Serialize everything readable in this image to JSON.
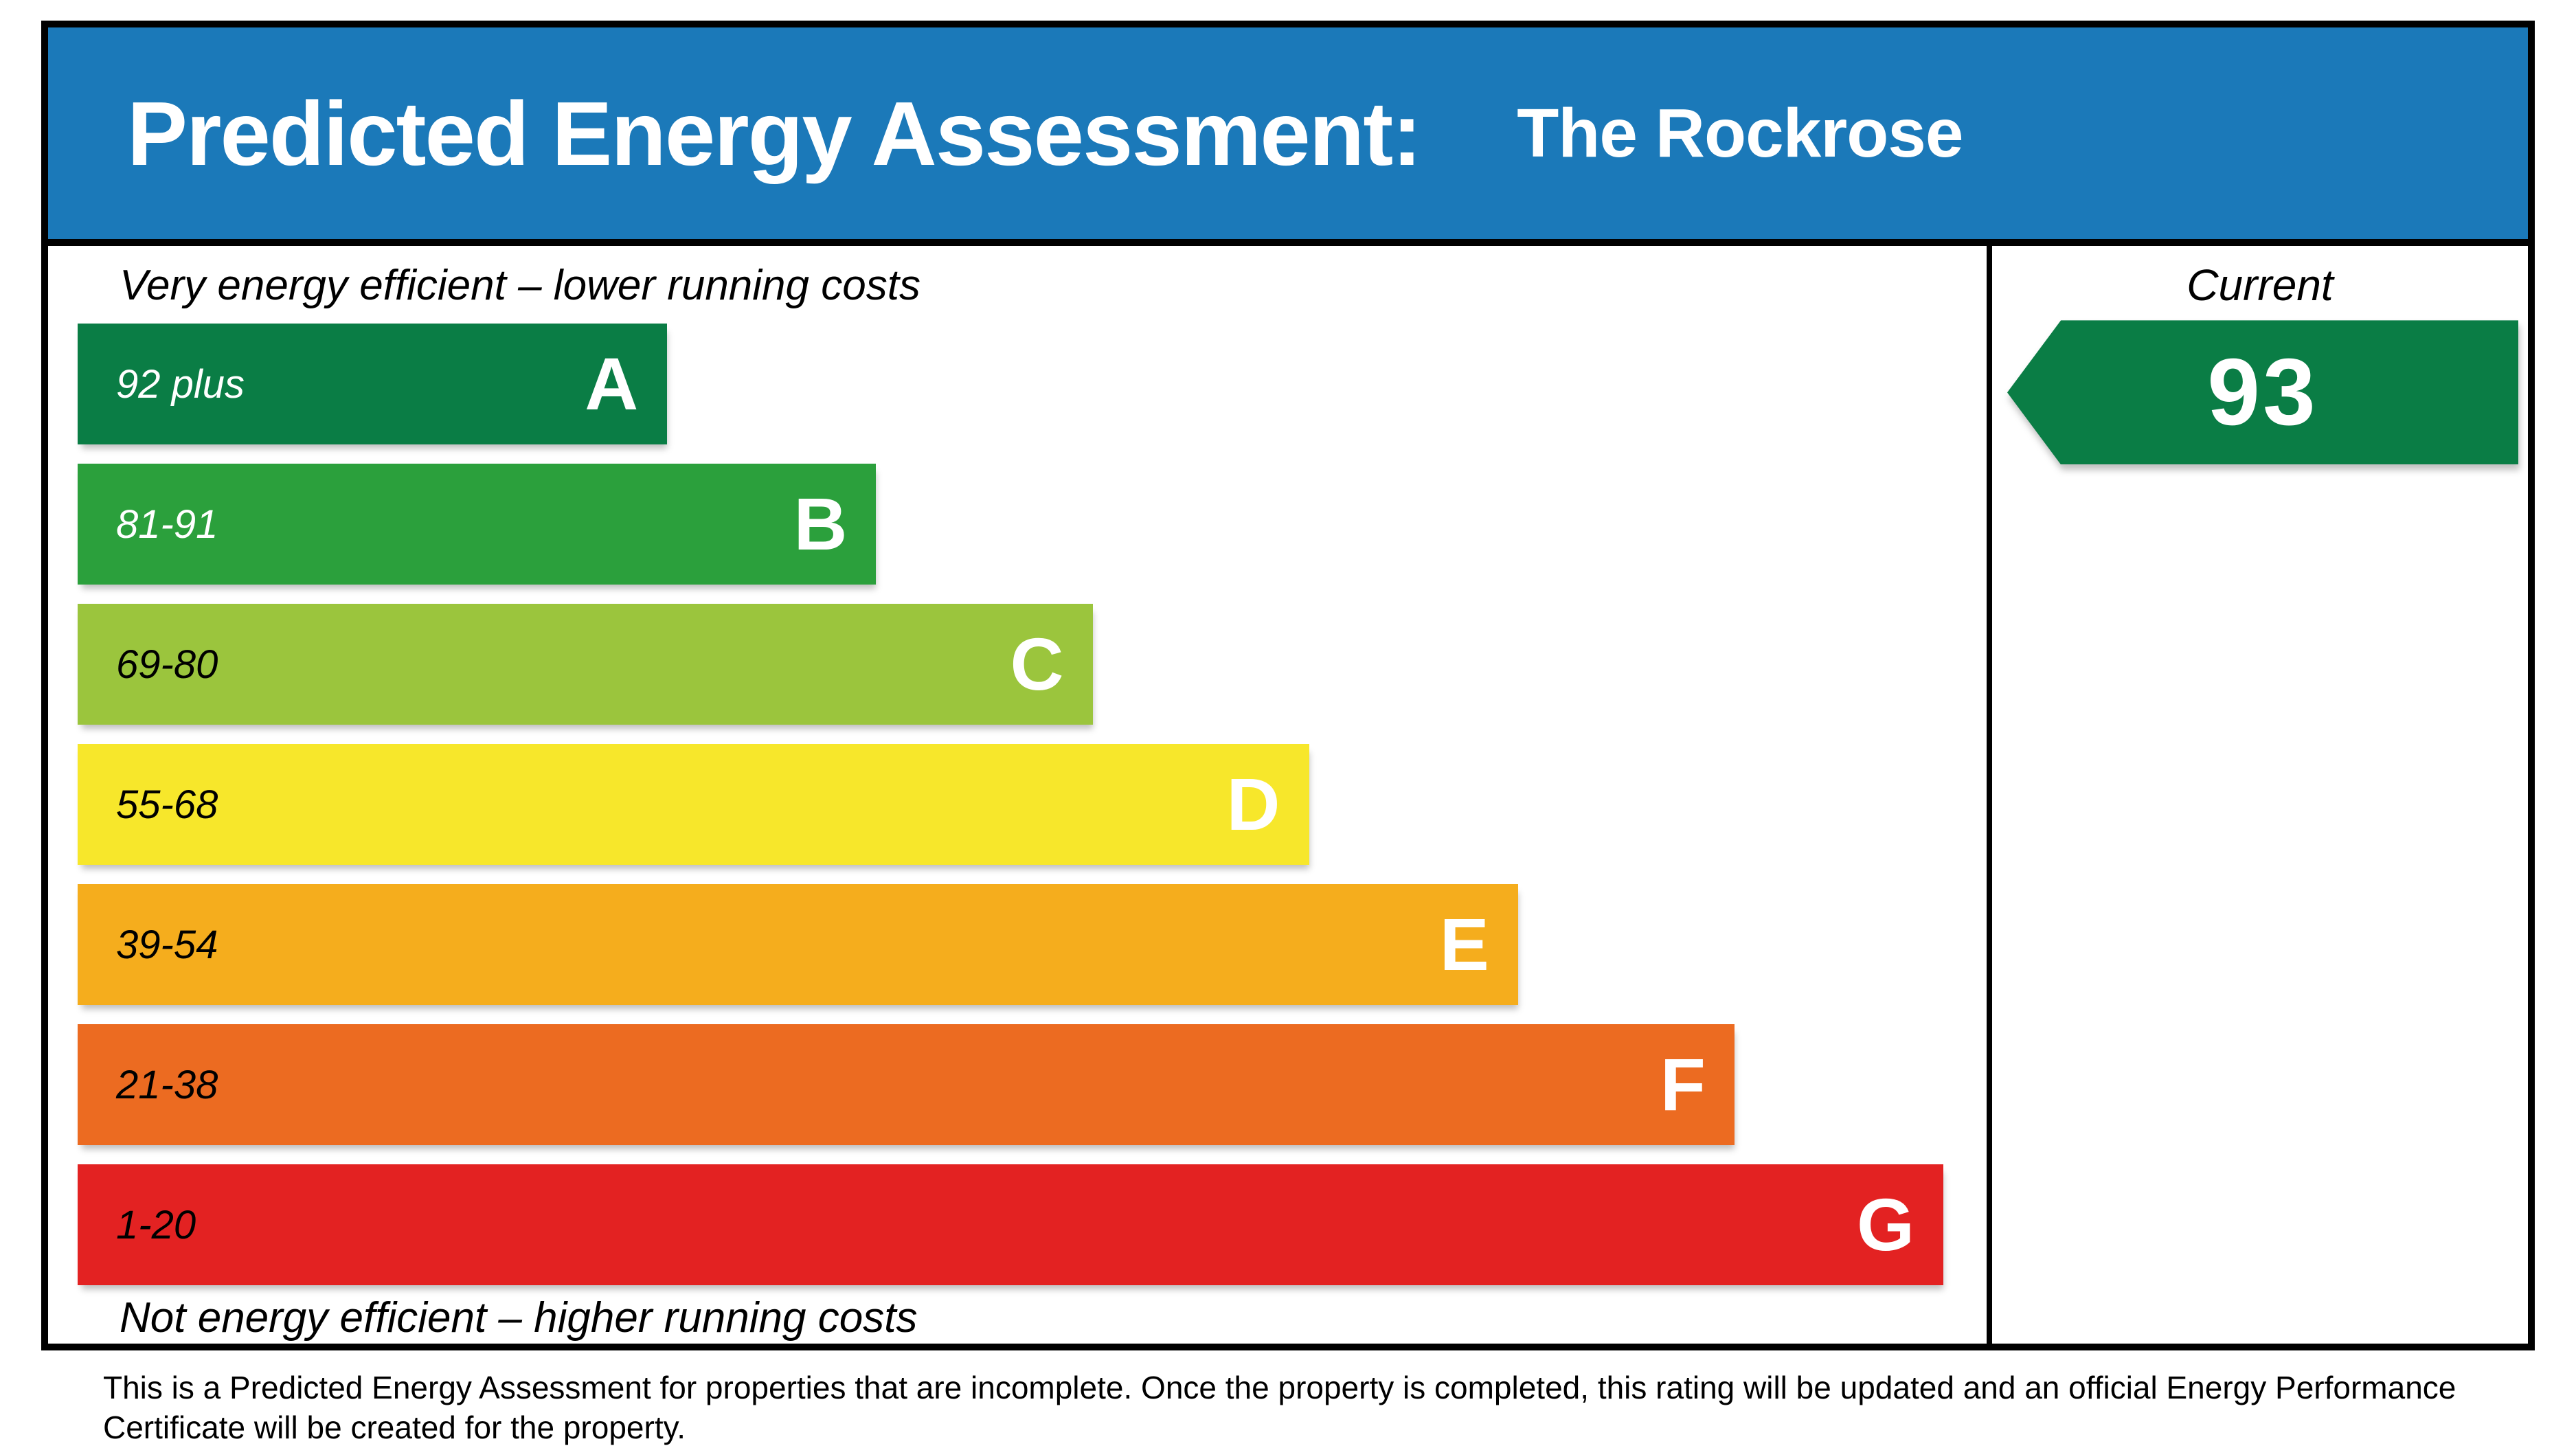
{
  "header": {
    "title": "Predicted Energy Assessment:",
    "property_name": "The Rockrose",
    "bg_color": "#1b79b9"
  },
  "chart_data": {
    "type": "bar",
    "title": "Predicted Energy Assessment: The Rockrose",
    "top_caption": "Very energy efficient – lower running costs",
    "bottom_caption": "Not energy efficient – higher running costs",
    "bands": [
      {
        "letter": "A",
        "range": "92 plus",
        "color": "#0a7d45",
        "range_text_color": "#ffffff",
        "width_pct": 31.6
      },
      {
        "letter": "B",
        "range": "81-91",
        "color": "#2ba03c",
        "range_text_color": "#ffffff",
        "width_pct": 42.8
      },
      {
        "letter": "C",
        "range": "69-80",
        "color": "#9bc53d",
        "range_text_color": "#000000",
        "width_pct": 54.4
      },
      {
        "letter": "D",
        "range": "55-68",
        "color": "#f7e72b",
        "range_text_color": "#000000",
        "width_pct": 66.0
      },
      {
        "letter": "E",
        "range": "39-54",
        "color": "#f5ad1d",
        "range_text_color": "#000000",
        "width_pct": 77.2
      },
      {
        "letter": "F",
        "range": "21-38",
        "color": "#ec6b21",
        "range_text_color": "#000000",
        "width_pct": 88.8
      },
      {
        "letter": "G",
        "range": "1-20",
        "color": "#e32222",
        "range_text_color": "#000000",
        "width_pct": 100
      }
    ],
    "current": {
      "label": "Current",
      "value": "93",
      "arrow_color": "#0a7d45",
      "value_color": "#ffffff"
    }
  },
  "footer": {
    "text": "This is a Predicted Energy Assessment for properties that are incomplete. Once the property is completed, this rating will be updated and an official Energy Performance Certificate will be created for the property."
  }
}
